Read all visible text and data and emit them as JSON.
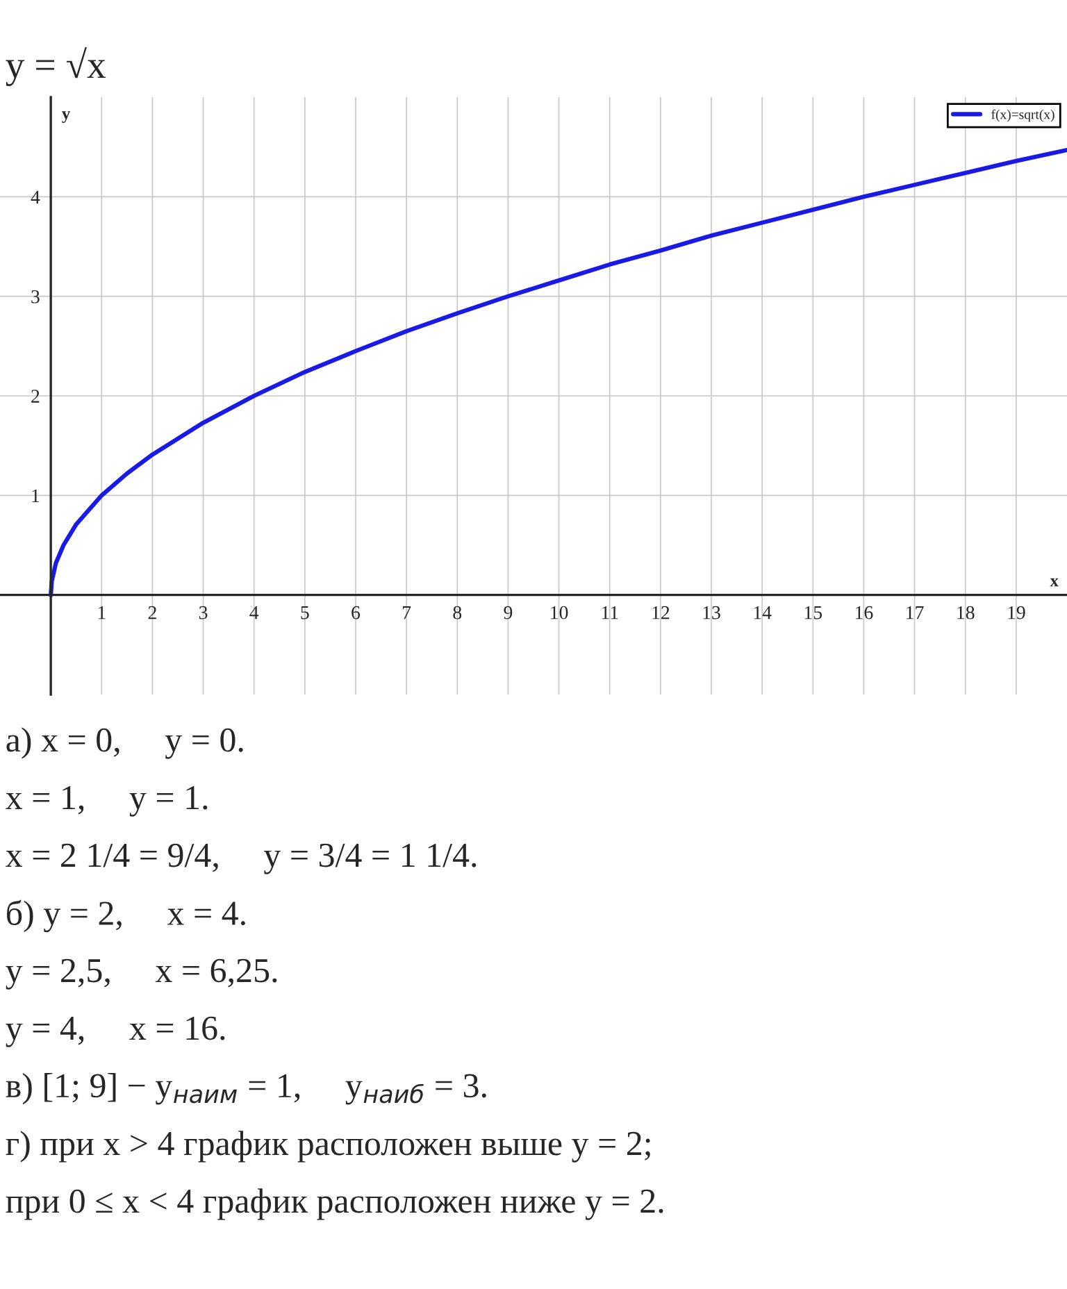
{
  "chart_data": {
    "type": "line",
    "title": "y = √x",
    "xlabel": "x",
    "ylabel": "y",
    "x": [
      0,
      0.02,
      0.1,
      0.25,
      0.5,
      1,
      1.5,
      2,
      3,
      4,
      5,
      6,
      7,
      8,
      9,
      10,
      11,
      12,
      13,
      14,
      15,
      16,
      17,
      18,
      19,
      20
    ],
    "series": [
      {
        "name": "f(x)=sqrt(x)",
        "color": "#1a1ae6",
        "values": [
          0,
          0.14,
          0.32,
          0.5,
          0.71,
          1,
          1.22,
          1.41,
          1.73,
          2,
          2.24,
          2.45,
          2.65,
          2.83,
          3,
          3.16,
          3.32,
          3.46,
          3.61,
          3.74,
          3.87,
          4,
          4.12,
          4.24,
          4.36,
          4.47
        ]
      }
    ],
    "xlim": [
      -1,
      20
    ],
    "ylim": [
      -1,
      5
    ],
    "xticks": [
      1,
      2,
      3,
      4,
      5,
      6,
      7,
      8,
      9,
      10,
      11,
      12,
      13,
      14,
      15,
      16,
      17,
      18,
      19
    ],
    "yticks": [
      1,
      2,
      3,
      4
    ],
    "grid": true,
    "legend": "top right",
    "marker": "none",
    "line_style": "solid",
    "annotations": [
      "а) x = 0,     y = 0.",
      "x = 1,     y = 1.",
      "x = 2 1/4 = 9/4,     y = 3/4 = 1 1/4.",
      "б) y = 2,     x = 4.",
      "y = 2,5,     x = 6,25.",
      "y = 4,     x = 16.",
      "в) [1; 9] − y$_{наим}$ = 1,     y$_{наиб}$ = 3.",
      "г) при x > 4 график расположен выше y = 2;",
      "при 0 ≤ x < 4 график расположен ниже y = 2."
    ]
  }
}
